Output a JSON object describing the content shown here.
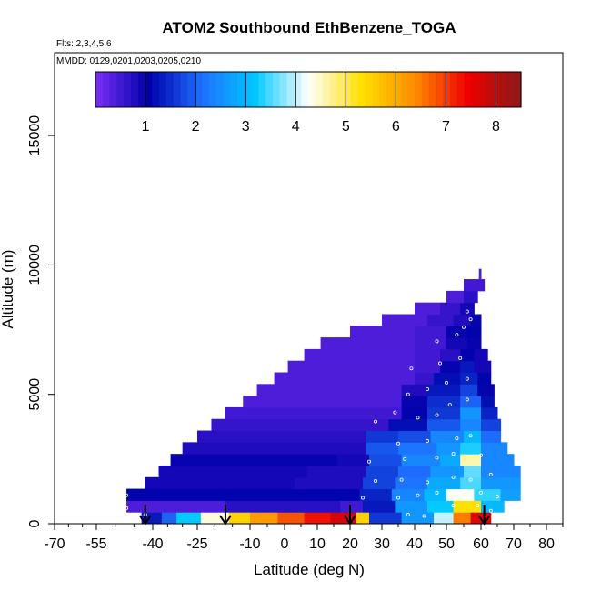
{
  "chart_data": {
    "type": "heatmap",
    "title": "ATOM2 Southbound EthBenzene_TOGA",
    "flights_note": "Flts: 2,3,4,5,6",
    "dates_note": "MMDD: 0129,0201,0203,0205,0210",
    "xlabel": "Latitude (deg N)",
    "ylabel": "Altitude (m)",
    "xlim": [
      -70,
      85
    ],
    "ylim": [
      0,
      18500
    ],
    "xticks": [
      -70,
      -55,
      -40,
      -25,
      -10,
      0,
      10,
      20,
      30,
      40,
      50,
      60,
      70,
      80
    ],
    "yticks": [
      0,
      5000,
      10000,
      15000
    ],
    "colorbar": {
      "range": [
        0,
        8.5
      ],
      "ticks": [
        1,
        2,
        3,
        4,
        5,
        6,
        7,
        8
      ],
      "colors": [
        "#7b2ff7",
        "#0000aa",
        "#1f6fff",
        "#00c8ff",
        "#ffffff",
        "#ffe000",
        "#ff8c00",
        "#ee0000",
        "#8b1a1a"
      ]
    },
    "arrows_lat": [
      -42,
      -17,
      20,
      61
    ],
    "layers": [
      {
        "alt_bottom": 0,
        "alt_top": 450,
        "cells": [
          [
            -43,
            6,
            1.3
          ],
          [
            -37,
            5,
            2.0
          ],
          [
            -32,
            8,
            3.2
          ],
          [
            -24,
            8,
            4.4
          ],
          [
            -16,
            6,
            5.5
          ],
          [
            -10,
            8,
            6.2
          ],
          [
            -2,
            8,
            6.8
          ],
          [
            6,
            8,
            7.3
          ],
          [
            14,
            8,
            7.7
          ],
          [
            22,
            4,
            5.5
          ],
          [
            26,
            10,
            1.6
          ],
          [
            36,
            10,
            2.6
          ],
          [
            46,
            6,
            4.0
          ],
          [
            52,
            5,
            6.5
          ],
          [
            57,
            6,
            7.6
          ]
        ]
      },
      {
        "alt_bottom": 450,
        "alt_top": 900,
        "cells": [
          [
            -47,
            30,
            0.4
          ],
          [
            -17,
            34,
            0.7
          ],
          [
            17,
            7,
            0.5
          ],
          [
            24,
            10,
            1.3
          ],
          [
            34,
            10,
            2.6
          ],
          [
            44,
            8,
            3.2
          ],
          [
            52,
            8,
            5.3
          ],
          [
            60,
            7,
            3.0
          ]
        ]
      },
      {
        "alt_bottom": 900,
        "alt_top": 1350,
        "cells": [
          [
            -47,
            40,
            1.1
          ],
          [
            -7,
            30,
            1.1
          ],
          [
            23,
            10,
            1.4
          ],
          [
            33,
            10,
            2.4
          ],
          [
            43,
            7,
            3.0
          ],
          [
            50,
            8,
            4.3
          ],
          [
            58,
            8,
            3.4
          ],
          [
            66,
            6,
            2.7
          ]
        ]
      },
      {
        "alt_bottom": 1350,
        "alt_top": 1800,
        "cells": [
          [
            -42,
            45,
            0.9
          ],
          [
            3,
            21,
            0.8
          ],
          [
            24,
            10,
            1.7
          ],
          [
            34,
            10,
            2.2
          ],
          [
            44,
            10,
            2.8
          ],
          [
            54,
            6,
            3.5
          ],
          [
            60,
            12,
            2.6
          ]
        ]
      },
      {
        "alt_bottom": 1800,
        "alt_top": 2250,
        "cells": [
          [
            -38,
            45,
            0.9
          ],
          [
            7,
            18,
            0.8
          ],
          [
            25,
            10,
            1.7
          ],
          [
            35,
            10,
            2.1
          ],
          [
            45,
            10,
            2.6
          ],
          [
            55,
            5,
            3.6
          ],
          [
            60,
            12,
            2.4
          ]
        ]
      },
      {
        "alt_bottom": 2250,
        "alt_top": 2700,
        "cells": [
          [
            -34,
            50,
            1.0
          ],
          [
            16,
            10,
            0.9
          ],
          [
            26,
            10,
            1.8
          ],
          [
            36,
            12,
            2.4
          ],
          [
            48,
            6,
            2.8
          ],
          [
            54,
            6,
            4.6
          ],
          [
            60,
            10,
            2.4
          ]
        ]
      },
      {
        "alt_bottom": 2700,
        "alt_top": 3150,
        "cells": [
          [
            -30,
            55,
            0.8
          ],
          [
            25,
            10,
            1.9
          ],
          [
            35,
            12,
            2.2
          ],
          [
            47,
            7,
            2.6
          ],
          [
            54,
            6,
            3.3
          ],
          [
            60,
            8,
            2.4
          ]
        ]
      },
      {
        "alt_bottom": 3150,
        "alt_top": 3600,
        "cells": [
          [
            -25,
            50,
            0.7
          ],
          [
            25,
            10,
            1.6
          ],
          [
            35,
            10,
            1.8
          ],
          [
            45,
            10,
            2.4
          ],
          [
            55,
            5,
            3.0
          ],
          [
            60,
            6,
            2.1
          ]
        ]
      },
      {
        "alt_bottom": 3600,
        "alt_top": 4050,
        "cells": [
          [
            -21,
            53,
            0.6
          ],
          [
            32,
            12,
            1.2
          ],
          [
            44,
            10,
            1.9
          ],
          [
            54,
            6,
            2.4
          ],
          [
            60,
            6,
            1.7
          ]
        ]
      },
      {
        "alt_bottom": 4050,
        "alt_top": 4500,
        "cells": [
          [
            -17,
            53,
            0.5
          ],
          [
            36,
            8,
            1.1
          ],
          [
            44,
            10,
            1.6
          ],
          [
            54,
            6,
            2.6
          ],
          [
            60,
            5,
            1.4
          ]
        ]
      },
      {
        "alt_bottom": 4500,
        "alt_top": 4950,
        "cells": [
          [
            -12,
            48,
            0.4
          ],
          [
            36,
            8,
            1.0
          ],
          [
            44,
            10,
            1.5
          ],
          [
            54,
            6,
            2.0
          ],
          [
            60,
            4,
            1.2
          ]
        ]
      },
      {
        "alt_bottom": 4950,
        "alt_top": 5400,
        "cells": [
          [
            -8,
            44,
            0.4
          ],
          [
            36,
            8,
            0.8
          ],
          [
            44,
            10,
            1.3
          ],
          [
            54,
            5,
            1.7
          ],
          [
            59,
            5,
            1.0
          ]
        ]
      },
      {
        "alt_bottom": 5400,
        "alt_top": 5850,
        "cells": [
          [
            -3,
            43,
            0.4
          ],
          [
            40,
            6,
            0.6
          ],
          [
            46,
            8,
            1.2
          ],
          [
            54,
            5,
            1.4
          ],
          [
            59,
            4,
            1.1
          ]
        ]
      },
      {
        "alt_bottom": 5850,
        "alt_top": 6300,
        "cells": [
          [
            1,
            39,
            0.4
          ],
          [
            40,
            8,
            0.5
          ],
          [
            48,
            6,
            1.0
          ],
          [
            54,
            4,
            1.3
          ],
          [
            58,
            5,
            0.9
          ]
        ]
      },
      {
        "alt_bottom": 6300,
        "alt_top": 6750,
        "cells": [
          [
            6,
            34,
            0.4
          ],
          [
            40,
            8,
            0.5
          ],
          [
            48,
            6,
            0.7
          ],
          [
            54,
            4,
            1.1
          ],
          [
            58,
            4,
            0.9
          ]
        ]
      },
      {
        "alt_bottom": 6750,
        "alt_top": 7200,
        "cells": [
          [
            11,
            29,
            0.4
          ],
          [
            40,
            10,
            0.5
          ],
          [
            50,
            6,
            0.9
          ],
          [
            56,
            4,
            1.0
          ]
        ]
      },
      {
        "alt_bottom": 7200,
        "alt_top": 7650,
        "cells": [
          [
            20,
            20,
            0.4
          ],
          [
            40,
            10,
            0.5
          ],
          [
            50,
            6,
            1.0
          ],
          [
            56,
            4,
            1.1
          ]
        ]
      },
      {
        "alt_bottom": 7650,
        "alt_top": 8100,
        "cells": [
          [
            30,
            14,
            0.4
          ],
          [
            44,
            8,
            0.6
          ],
          [
            52,
            5,
            0.8
          ],
          [
            57,
            3,
            1.0
          ]
        ]
      },
      {
        "alt_bottom": 8100,
        "alt_top": 8550,
        "cells": [
          [
            40,
            8,
            0.4
          ],
          [
            48,
            6,
            0.6
          ],
          [
            54,
            4,
            0.9
          ]
        ]
      },
      {
        "alt_bottom": 8550,
        "alt_top": 9000,
        "cells": [
          [
            50,
            5,
            0.4
          ],
          [
            55,
            4,
            0.7
          ]
        ]
      },
      {
        "alt_bottom": 9000,
        "alt_top": 9450,
        "cells": [
          [
            55,
            6,
            0.5
          ]
        ]
      },
      {
        "alt_bottom": 9450,
        "alt_top": 9850,
        "cells": [
          [
            59.4,
            0.6,
            0.4
          ]
        ]
      }
    ],
    "samples": [
      [
        -47,
        1100
      ],
      [
        -47,
        600
      ],
      [
        -46,
        250
      ],
      [
        -42,
        350
      ],
      [
        38,
        350
      ],
      [
        43,
        300
      ],
      [
        52,
        700
      ],
      [
        59,
        700
      ],
      [
        63,
        500
      ],
      [
        24,
        1000
      ],
      [
        35,
        1000
      ],
      [
        41,
        1100
      ],
      [
        47,
        1200
      ],
      [
        52,
        1150
      ],
      [
        60,
        1200
      ],
      [
        65,
        1050
      ],
      [
        28,
        1650
      ],
      [
        36,
        1700
      ],
      [
        44,
        1600
      ],
      [
        52,
        1800
      ],
      [
        57,
        1700
      ],
      [
        63,
        1900
      ],
      [
        26,
        2400
      ],
      [
        37,
        2500
      ],
      [
        47,
        2550
      ],
      [
        52,
        2700
      ],
      [
        60,
        2650
      ],
      [
        35,
        3100
      ],
      [
        44,
        3200
      ],
      [
        53,
        3300
      ],
      [
        57,
        3400
      ],
      [
        28,
        3950
      ],
      [
        34,
        4300
      ],
      [
        41,
        4100
      ],
      [
        47,
        4200
      ],
      [
        51,
        4600
      ],
      [
        56,
        4800
      ],
      [
        38,
        5000
      ],
      [
        44,
        5200
      ],
      [
        50,
        5450
      ],
      [
        56,
        5600
      ],
      [
        39,
        6000
      ],
      [
        48,
        6200
      ],
      [
        54,
        6400
      ],
      [
        47,
        7050
      ],
      [
        53,
        7300
      ],
      [
        55,
        7600
      ],
      [
        57,
        7900
      ],
      [
        56,
        8200
      ]
    ]
  }
}
